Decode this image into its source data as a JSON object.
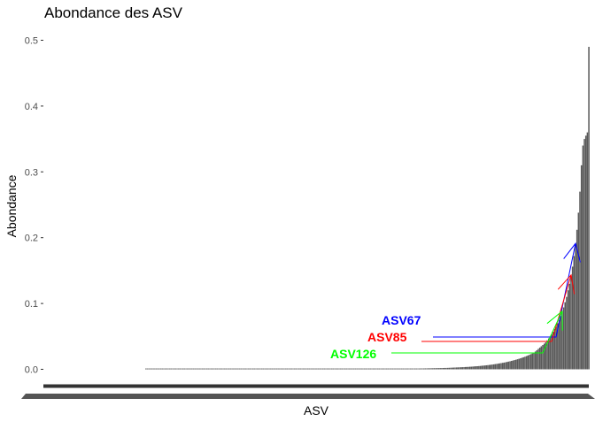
{
  "chart_data": {
    "type": "bar",
    "title": "Abondance des ASV",
    "xlabel": "ASV",
    "ylabel": "Abondance",
    "ylim": [
      -0.01,
      0.51
    ],
    "yticks": [
      0.0,
      0.1,
      0.2,
      0.3,
      0.4,
      0.5
    ],
    "ytick_labels": [
      "0.0",
      "0.1",
      "0.2",
      "0.3",
      "0.4",
      "0.5"
    ],
    "bar_color": "#595959",
    "grid": false,
    "legend": "none",
    "n_bars": 321,
    "first_nonzero_index": 22,
    "values": [
      0.0,
      0.0,
      0.0,
      0.0,
      0.0,
      0.0,
      0.0,
      0.0,
      0.0,
      0.0,
      0.0,
      0.0,
      0.0,
      0.0,
      0.0,
      0.0,
      0.0,
      0.0,
      0.0,
      0.0,
      0.0,
      0.0,
      0.0001,
      0.0001,
      0.0001,
      0.0001,
      0.0001,
      0.0001,
      0.0001,
      0.0001,
      0.0001,
      0.0001,
      0.0001,
      0.0001,
      0.0001,
      0.0001,
      0.0001,
      0.0001,
      0.0001,
      0.0001,
      0.0001,
      0.0001,
      0.0001,
      0.0001,
      0.0001,
      0.0001,
      0.0001,
      0.0001,
      0.0001,
      0.0001,
      0.0001,
      0.0001,
      0.0001,
      0.0001,
      0.0001,
      0.0001,
      0.0001,
      0.0001,
      0.0001,
      0.0001,
      0.0001,
      0.0001,
      0.0001,
      0.0001,
      0.0001,
      0.0001,
      0.0001,
      0.0001,
      0.0001,
      0.0001,
      0.0001,
      0.0001,
      0.0001,
      0.0001,
      0.0001,
      0.0001,
      0.0001,
      0.0001,
      0.0001,
      0.0001,
      0.0001,
      0.0001,
      0.0001,
      0.0001,
      0.0001,
      0.0001,
      0.0001,
      0.0001,
      0.0001,
      0.0001,
      0.0001,
      0.0001,
      0.0001,
      0.0001,
      0.0001,
      0.0001,
      0.0001,
      0.0001,
      0.0001,
      0.0001,
      0.0001,
      0.0001,
      0.0001,
      0.0001,
      0.0002,
      0.0002,
      0.0002,
      0.0002,
      0.0002,
      0.0002,
      0.0002,
      0.0002,
      0.0002,
      0.0002,
      0.0002,
      0.0002,
      0.0002,
      0.0002,
      0.0002,
      0.0002,
      0.0002,
      0.0002,
      0.0002,
      0.0002,
      0.0002,
      0.0002,
      0.0002,
      0.0002,
      0.0002,
      0.0002,
      0.0002,
      0.0002,
      0.0002,
      0.0002,
      0.0003,
      0.0003,
      0.0003,
      0.0003,
      0.0003,
      0.0003,
      0.0003,
      0.0003,
      0.0003,
      0.0003,
      0.0003,
      0.0003,
      0.0003,
      0.0003,
      0.0003,
      0.0003,
      0.0003,
      0.0003,
      0.0003,
      0.0004,
      0.0004,
      0.0004,
      0.0004,
      0.0004,
      0.0004,
      0.0004,
      0.0004,
      0.0004,
      0.0004,
      0.0004,
      0.0004,
      0.0004,
      0.0005,
      0.0005,
      0.0005,
      0.0005,
      0.0005,
      0.0005,
      0.0005,
      0.0005,
      0.0005,
      0.0006,
      0.0006,
      0.0006,
      0.0006,
      0.0006,
      0.0006,
      0.0006,
      0.0007,
      0.0007,
      0.0007,
      0.0007,
      0.0007,
      0.0007,
      0.0008,
      0.0008,
      0.0008,
      0.0008,
      0.0008,
      0.0009,
      0.0009,
      0.0009,
      0.0009,
      0.001,
      0.001,
      0.001,
      0.001,
      0.0011,
      0.0011,
      0.0011,
      0.0012,
      0.0012,
      0.0012,
      0.0013,
      0.0013,
      0.0013,
      0.0014,
      0.0014,
      0.0015,
      0.0015,
      0.0016,
      0.0016,
      0.0017,
      0.0017,
      0.0018,
      0.0018,
      0.0019,
      0.0019,
      0.002,
      0.0021,
      0.0021,
      0.0022,
      0.0023,
      0.0024,
      0.0025,
      0.0026,
      0.0027,
      0.0028,
      0.0029,
      0.003,
      0.0031,
      0.0032,
      0.0033,
      0.0035,
      0.0036,
      0.0037,
      0.0039,
      0.004,
      0.0042,
      0.0044,
      0.0046,
      0.0047,
      0.0049,
      0.0051,
      0.0054,
      0.0056,
      0.0058,
      0.0061,
      0.0063,
      0.0066,
      0.0069,
      0.0072,
      0.0075,
      0.0079,
      0.0082,
      0.0086,
      0.009,
      0.0094,
      0.0098,
      0.0102,
      0.0107,
      0.0112,
      0.0117,
      0.0122,
      0.0128,
      0.0134,
      0.014,
      0.0146,
      0.0153,
      0.016,
      0.0167,
      0.0175,
      0.0183,
      0.0191,
      0.02,
      0.021,
      0.022,
      0.023,
      0.024,
      0.025,
      0.027,
      0.029,
      0.031,
      0.033,
      0.035,
      0.037,
      0.039,
      0.041,
      0.044,
      0.047,
      0.05,
      0.053,
      0.057,
      0.061,
      0.065,
      0.07,
      0.075,
      0.081,
      0.087,
      0.094,
      0.102,
      0.11,
      0.12,
      0.13,
      0.142,
      0.156,
      0.172,
      0.19,
      0.212,
      0.238,
      0.27,
      0.31,
      0.34,
      0.35,
      0.355,
      0.36,
      0.49
    ],
    "annotations": [
      {
        "label": "ASV67",
        "color": "#0000ff",
        "target_index": 311
      },
      {
        "label": "ASV85",
        "color": "#ff0000",
        "target_index": 308
      },
      {
        "label": "ASV126",
        "color": "#00ff00",
        "target_index": 302
      }
    ]
  }
}
